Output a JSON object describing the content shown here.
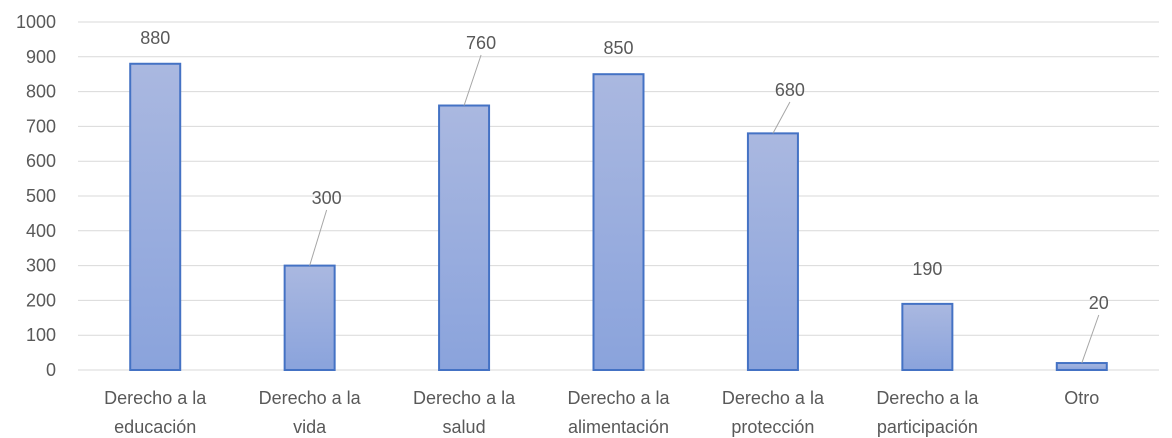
{
  "chart_data": {
    "type": "bar",
    "title": "",
    "xlabel": "",
    "ylabel": "",
    "categories": [
      [
        "Derecho a la",
        "educación"
      ],
      [
        "Derecho a la",
        "vida"
      ],
      [
        "Derecho a la",
        "salud"
      ],
      [
        "Derecho a la",
        "alimentación"
      ],
      [
        "Derecho a la",
        "protección"
      ],
      [
        "Derecho a la",
        "participación"
      ],
      [
        "Otro"
      ]
    ],
    "values": [
      880,
      300,
      760,
      850,
      680,
      190,
      20
    ],
    "data_labels": [
      "880",
      "300",
      "760",
      "850",
      "680",
      "190",
      "20"
    ],
    "ylim": [
      0,
      1000
    ],
    "yticks": [
      0,
      100,
      200,
      300,
      400,
      500,
      600,
      700,
      800,
      900,
      1000
    ],
    "grid": true,
    "legend": "none",
    "colors": {
      "bar_fill_top": "#aab8e0",
      "bar_fill_bottom": "#8aa3dc",
      "bar_stroke": "#4472c4",
      "gridline": "#d9d9d9",
      "text": "#595959",
      "leader": "#a6a6a6"
    }
  }
}
